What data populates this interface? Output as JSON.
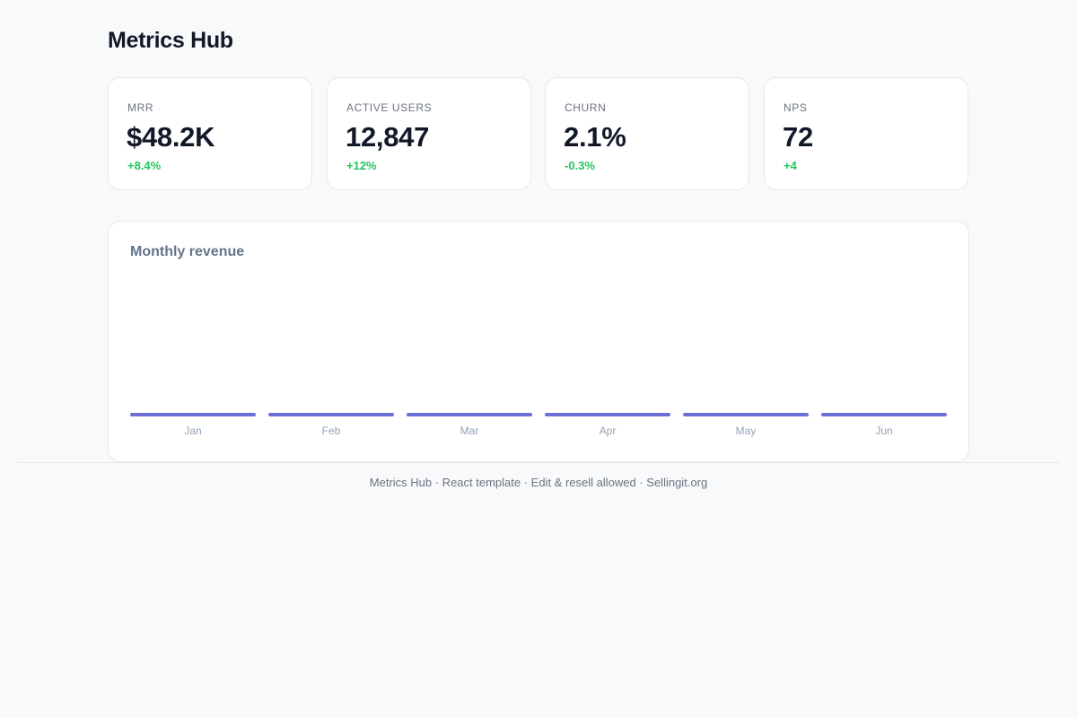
{
  "header": {
    "title": "Metrics Hub"
  },
  "stats": [
    {
      "label": "MRR",
      "value": "$48.2K",
      "delta": "+8.4%"
    },
    {
      "label": "ACTIVE USERS",
      "value": "12,847",
      "delta": "+12%"
    },
    {
      "label": "CHURN",
      "value": "2.1%",
      "delta": "-0.3%"
    },
    {
      "label": "NPS",
      "value": "72",
      "delta": "+4"
    }
  ],
  "chart": {
    "title": "Monthly revenue"
  },
  "chart_data": {
    "type": "bar",
    "categories": [
      "Jan",
      "Feb",
      "Mar",
      "Apr",
      "May",
      "Jun"
    ],
    "values": [
      0,
      0,
      0,
      0,
      0,
      0
    ],
    "title": "Monthly revenue",
    "xlabel": "",
    "ylabel": "",
    "grid": false,
    "bar_color": "#6c6fd8"
  },
  "footer": {
    "text": "Metrics Hub · React template · Edit & resell allowed · Sellingit.org"
  },
  "colors": {
    "accent": "#6c6fd8",
    "positive": "#22c55e"
  }
}
